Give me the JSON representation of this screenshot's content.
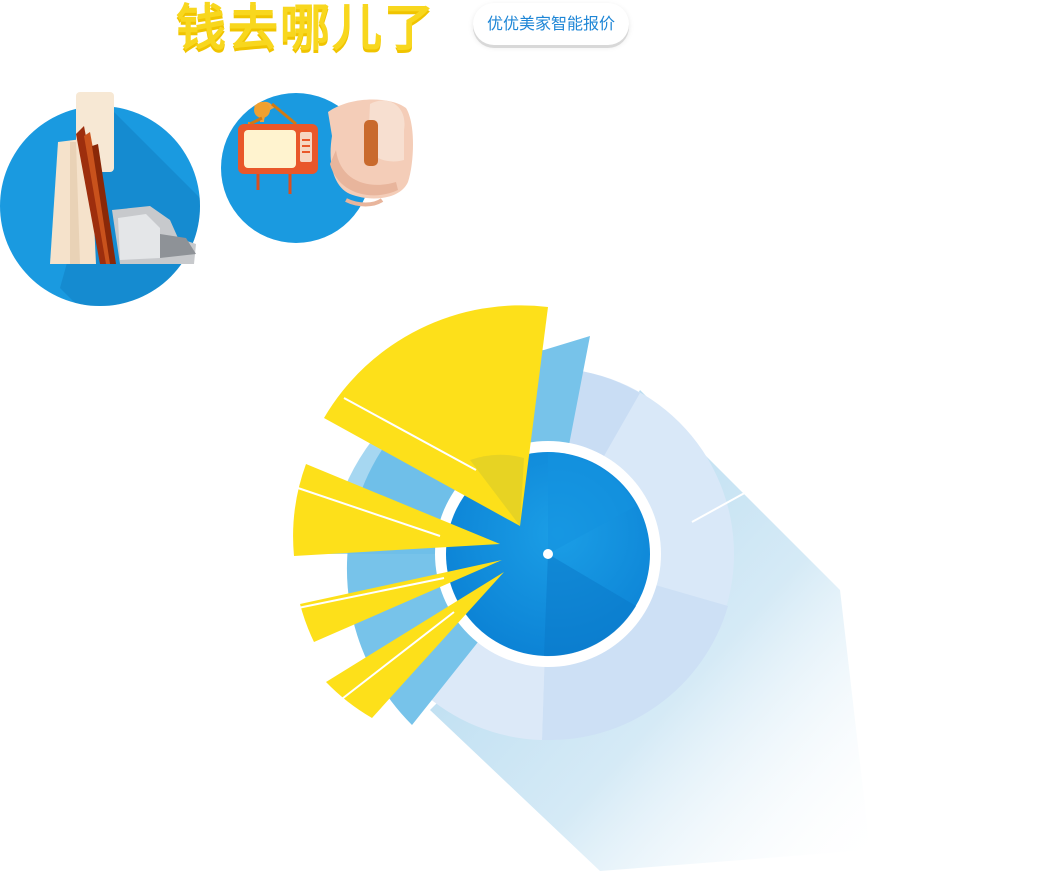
{
  "header": {
    "title": "钱去哪儿了",
    "quote_button_label": "优优美家智能报价"
  },
  "icons": {
    "materials": "building-materials-icon",
    "furniture": "furniture-appliances-icon"
  },
  "colors": {
    "title_yellow": "#f8d71e",
    "accent_blue": "#1e86d6",
    "circle_blue": "#1a9ae0",
    "core_blue": "#0c88dc",
    "light_blue_ring": "#cfe1f5",
    "sky_blue": "#76c3ea",
    "yellow_petal": "#fde01a"
  }
}
